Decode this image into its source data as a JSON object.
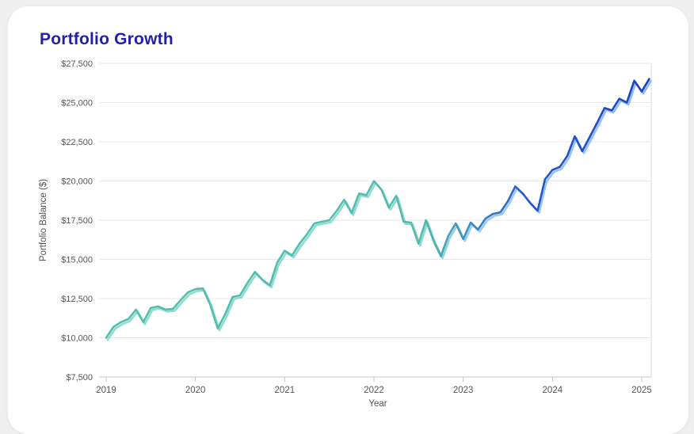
{
  "card": {
    "title": "Portfolio Growth"
  },
  "colors": {
    "page_bg": "#f0f0f0",
    "card_bg": "#ffffff",
    "title_text": "#221fad",
    "tick_text": "#565656",
    "axis_title_text": "#4f4f4f",
    "gridline": "#e8e8e8",
    "axis_line": "#c4c4c4",
    "plot_right_border": "#dedede",
    "line_teal": "#55bdac",
    "line_blue_end": "#1c40c2",
    "line_gradient_stops": [
      [
        0,
        "#55bdac"
      ],
      [
        0.58,
        "#53bcae"
      ],
      [
        0.68,
        "#3a86c2"
      ],
      [
        0.78,
        "#2456c8"
      ],
      [
        1,
        "#1c40c2"
      ]
    ],
    "shadow_gradient_stops": [
      [
        0,
        "#8cdccf"
      ],
      [
        0.58,
        "#8cdccf"
      ],
      [
        0.72,
        "#9ccaec"
      ],
      [
        1,
        "#8abaec"
      ]
    ]
  },
  "chart_data": {
    "type": "line",
    "title": "Portfolio Growth",
    "xlabel": "Year",
    "ylabel": "Portfolio Balance ($)",
    "legend": "none",
    "grid": "horizontal",
    "ylim": [
      7500,
      27500
    ],
    "y_tick_step": 2500,
    "y_tick_values": [
      7500,
      10000,
      12500,
      15000,
      17500,
      20000,
      22500,
      25000,
      27500
    ],
    "y_tick_labels": [
      "$7,500",
      "$10,000",
      "$12,500",
      "$15,000",
      "$17,500",
      "$20,000",
      "$22,500",
      "$25,000",
      "$27,500"
    ],
    "x_tick_values": [
      2019,
      2020,
      2021,
      2022,
      2023,
      2024,
      2025
    ],
    "x_tick_labels": [
      "2019",
      "2020",
      "2021",
      "2022",
      "2023",
      "2024",
      "2025"
    ],
    "series": [
      {
        "name": "Portfolio Balance",
        "start": "2019-01",
        "interval": "monthly",
        "values": [
          10000,
          10700,
          11000,
          11200,
          11800,
          11000,
          11900,
          12000,
          11800,
          11850,
          12400,
          12900,
          13100,
          13150,
          12100,
          10600,
          11500,
          12600,
          12700,
          13500,
          14200,
          13700,
          13350,
          14800,
          15550,
          15250,
          16000,
          16600,
          17300,
          17400,
          17500,
          18100,
          18800,
          17950,
          19200,
          19100,
          20000,
          19450,
          18300,
          19050,
          17400,
          17350,
          16000,
          17500,
          16200,
          15200,
          16500,
          17300,
          16300,
          17350,
          16900,
          17600,
          17900,
          18000,
          18700,
          19650,
          19200,
          18600,
          18100,
          20100,
          20700,
          20900,
          21600,
          22850,
          21900,
          22800,
          23700,
          24650,
          24500,
          25250,
          25000,
          26400,
          25700,
          26500
        ]
      }
    ]
  }
}
